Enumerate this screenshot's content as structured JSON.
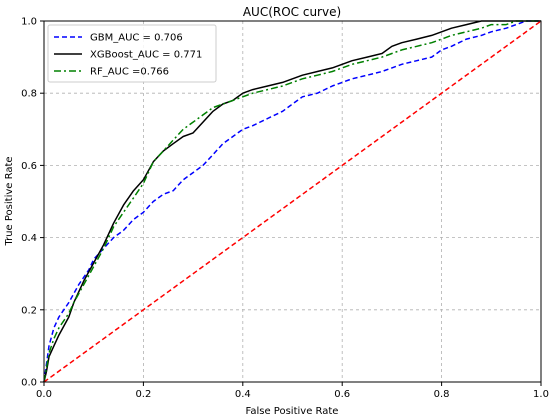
{
  "chart_data": {
    "type": "line",
    "title": "AUC(ROC curve)",
    "xlabel": "False Positive Rate",
    "ylabel": "True Positive Rate",
    "xlim": [
      0.0,
      1.0
    ],
    "ylim": [
      0.0,
      1.0
    ],
    "xticks": [
      0.0,
      0.2,
      0.4,
      0.6,
      0.8,
      1.0
    ],
    "yticks": [
      0.0,
      0.2,
      0.4,
      0.6,
      0.8,
      1.0
    ],
    "xtick_labels": [
      "0.0",
      "0.2",
      "0.4",
      "0.6",
      "0.8",
      "1.0"
    ],
    "ytick_labels": [
      "0.0",
      "0.2",
      "0.4",
      "0.6",
      "0.8",
      "1.0"
    ],
    "grid": true,
    "legend_position": "top-left",
    "series": [
      {
        "name": "GBM_AUC = 0.706",
        "color": "#0000ff",
        "style": "dashed",
        "x": [
          0.0,
          0.005,
          0.01,
          0.02,
          0.03,
          0.05,
          0.07,
          0.09,
          0.1,
          0.12,
          0.14,
          0.16,
          0.18,
          0.2,
          0.22,
          0.24,
          0.26,
          0.28,
          0.3,
          0.32,
          0.34,
          0.36,
          0.38,
          0.4,
          0.42,
          0.45,
          0.48,
          0.5,
          0.52,
          0.55,
          0.58,
          0.6,
          0.62,
          0.65,
          0.68,
          0.7,
          0.72,
          0.75,
          0.78,
          0.8,
          0.82,
          0.85,
          0.88,
          0.9,
          0.93,
          0.95,
          0.97,
          1.0
        ],
        "y": [
          0.0,
          0.05,
          0.1,
          0.15,
          0.18,
          0.22,
          0.27,
          0.31,
          0.34,
          0.37,
          0.4,
          0.42,
          0.45,
          0.47,
          0.5,
          0.52,
          0.53,
          0.56,
          0.58,
          0.6,
          0.63,
          0.66,
          0.68,
          0.7,
          0.71,
          0.73,
          0.75,
          0.77,
          0.79,
          0.8,
          0.82,
          0.83,
          0.84,
          0.85,
          0.86,
          0.87,
          0.88,
          0.89,
          0.9,
          0.92,
          0.93,
          0.95,
          0.96,
          0.97,
          0.98,
          0.99,
          1.0,
          1.0
        ]
      },
      {
        "name": "XGBoost_AUC = 0.771",
        "color": "#000000",
        "style": "solid",
        "x": [
          0.0,
          0.005,
          0.01,
          0.02,
          0.03,
          0.05,
          0.06,
          0.08,
          0.1,
          0.12,
          0.14,
          0.16,
          0.18,
          0.2,
          0.22,
          0.24,
          0.26,
          0.28,
          0.3,
          0.32,
          0.34,
          0.36,
          0.38,
          0.4,
          0.42,
          0.45,
          0.48,
          0.5,
          0.52,
          0.55,
          0.58,
          0.6,
          0.62,
          0.65,
          0.68,
          0.7,
          0.72,
          0.75,
          0.78,
          0.8,
          0.82,
          0.85,
          0.88,
          0.9,
          0.93,
          0.95,
          0.97,
          1.0
        ],
        "y": [
          0.0,
          0.03,
          0.07,
          0.1,
          0.13,
          0.18,
          0.22,
          0.28,
          0.33,
          0.38,
          0.44,
          0.49,
          0.53,
          0.56,
          0.61,
          0.64,
          0.66,
          0.68,
          0.69,
          0.72,
          0.75,
          0.77,
          0.78,
          0.8,
          0.81,
          0.82,
          0.83,
          0.84,
          0.85,
          0.86,
          0.87,
          0.88,
          0.89,
          0.9,
          0.91,
          0.93,
          0.94,
          0.95,
          0.96,
          0.97,
          0.98,
          0.99,
          1.0,
          1.0,
          1.0,
          1.0,
          1.0,
          1.0
        ]
      },
      {
        "name": "RF_AUC =0.766",
        "color": "#008000",
        "style": "dashdot",
        "x": [
          0.0,
          0.005,
          0.01,
          0.02,
          0.03,
          0.05,
          0.06,
          0.08,
          0.1,
          0.12,
          0.14,
          0.16,
          0.18,
          0.2,
          0.22,
          0.24,
          0.26,
          0.28,
          0.3,
          0.32,
          0.34,
          0.36,
          0.38,
          0.4,
          0.42,
          0.45,
          0.48,
          0.5,
          0.52,
          0.55,
          0.58,
          0.6,
          0.62,
          0.65,
          0.68,
          0.7,
          0.72,
          0.75,
          0.78,
          0.8,
          0.82,
          0.85,
          0.88,
          0.9,
          0.93,
          0.95,
          0.97,
          1.0
        ],
        "y": [
          0.0,
          0.04,
          0.08,
          0.12,
          0.15,
          0.19,
          0.22,
          0.27,
          0.32,
          0.37,
          0.43,
          0.47,
          0.51,
          0.55,
          0.61,
          0.64,
          0.67,
          0.7,
          0.72,
          0.74,
          0.76,
          0.77,
          0.78,
          0.79,
          0.8,
          0.81,
          0.82,
          0.83,
          0.84,
          0.85,
          0.86,
          0.87,
          0.88,
          0.89,
          0.9,
          0.91,
          0.92,
          0.93,
          0.94,
          0.95,
          0.96,
          0.97,
          0.98,
          0.99,
          0.99,
          1.0,
          1.0,
          1.0
        ]
      },
      {
        "name": "",
        "color": "#ff0000",
        "style": "dashed",
        "x": [
          0.0,
          1.0
        ],
        "y": [
          0.0,
          1.0
        ]
      }
    ]
  }
}
